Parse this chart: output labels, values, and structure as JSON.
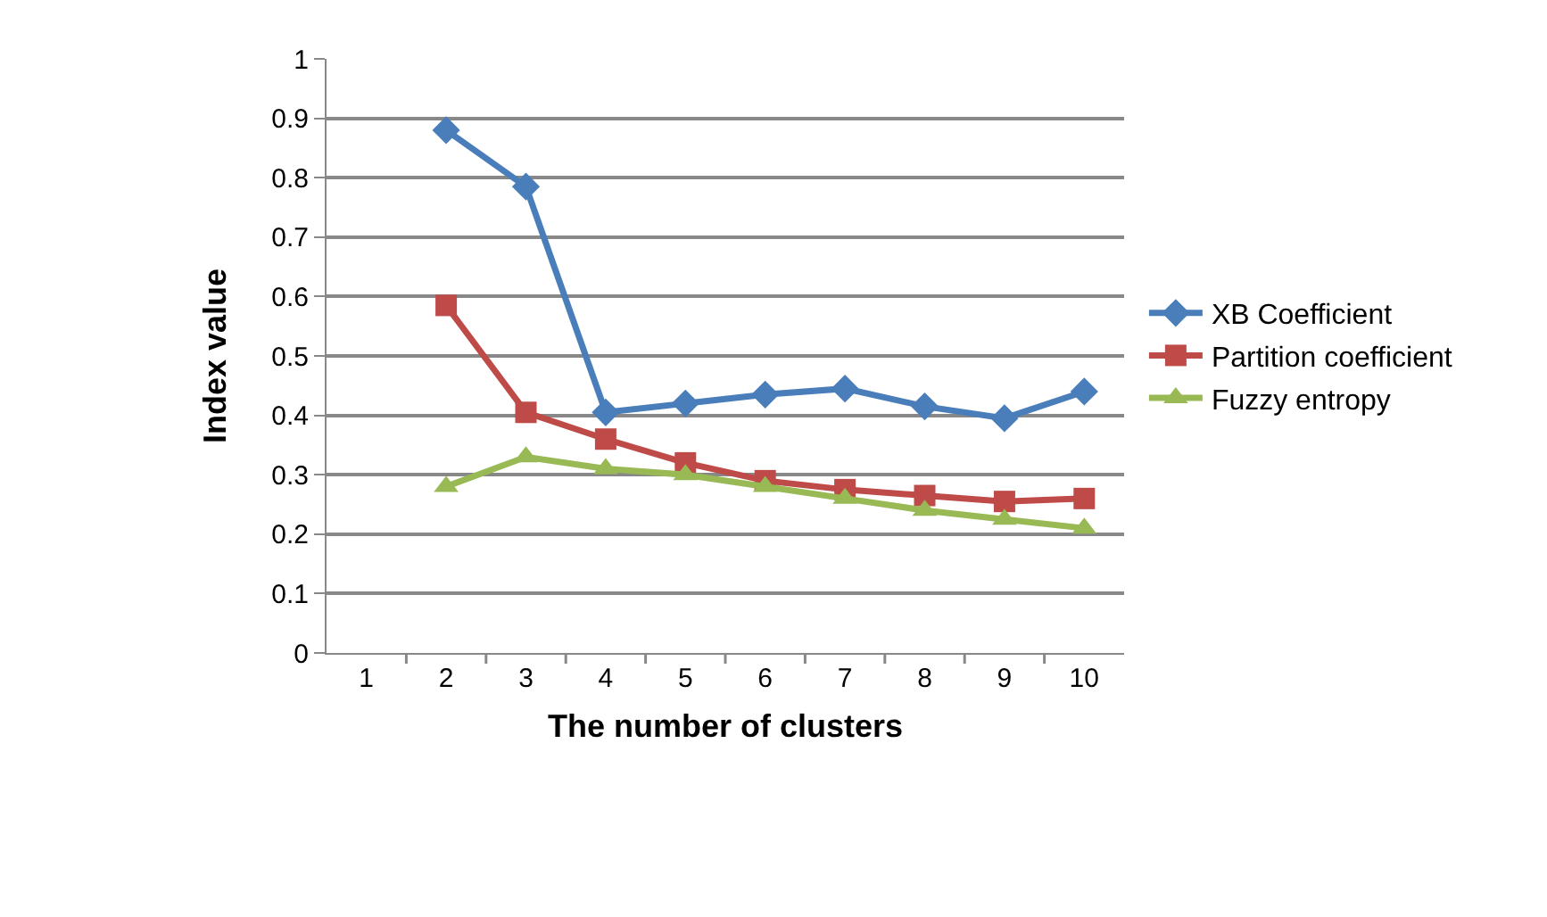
{
  "chart_data": {
    "type": "line",
    "xlabel": "The number of clusters",
    "ylabel": "Index value",
    "categories": [
      "1",
      "2",
      "3",
      "4",
      "5",
      "6",
      "7",
      "8",
      "9",
      "10"
    ],
    "series": [
      {
        "name": "XB Coefficient",
        "color": "#4a7ebb",
        "marker": "diamond",
        "values": [
          null,
          0.88,
          0.785,
          0.405,
          0.42,
          0.435,
          0.445,
          0.415,
          0.395,
          0.44
        ]
      },
      {
        "name": "Partition coefficient",
        "color": "#be4b48",
        "marker": "square",
        "values": [
          null,
          0.585,
          0.405,
          0.36,
          0.32,
          0.29,
          0.275,
          0.265,
          0.255,
          0.26
        ]
      },
      {
        "name": "Fuzzy entropy",
        "color": "#98b954",
        "marker": "triangle",
        "values": [
          null,
          0.28,
          0.33,
          0.31,
          0.3,
          0.28,
          0.26,
          0.24,
          0.225,
          0.21
        ]
      }
    ],
    "ylim": [
      0,
      1
    ],
    "yticks": [
      0,
      0.1,
      0.2,
      0.3,
      0.4,
      0.5,
      0.6,
      0.7,
      0.8,
      0.9,
      1
    ],
    "grid": "y",
    "legend": "right",
    "line_style": "solid"
  }
}
